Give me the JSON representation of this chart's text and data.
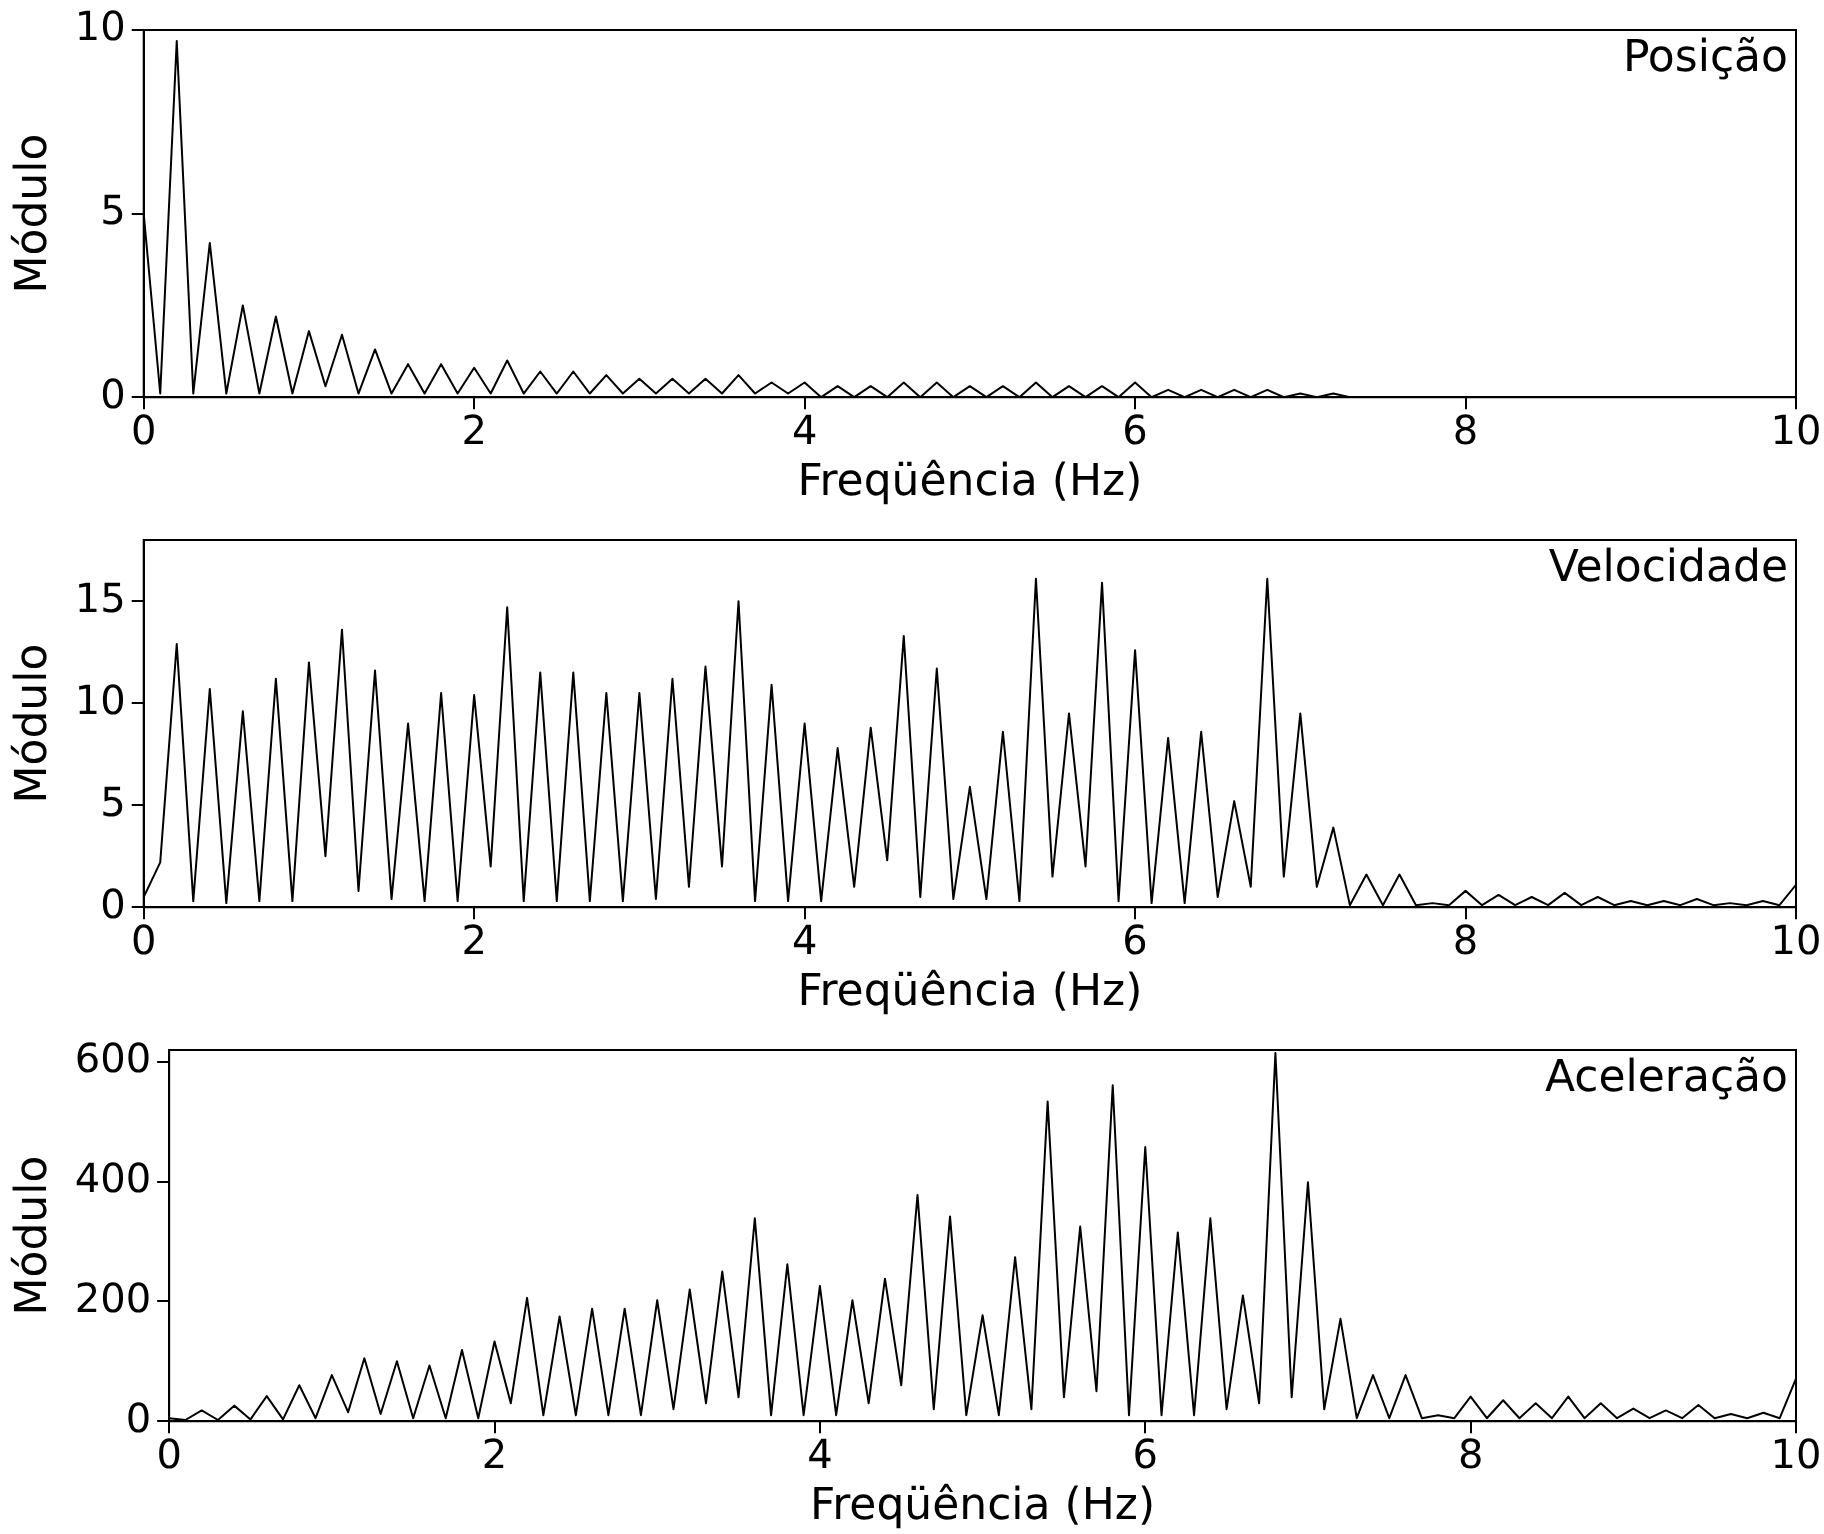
{
  "chart_data": [
    {
      "type": "line",
      "title": "Posição",
      "xlabel": "Freqüência (Hz)",
      "ylabel": "Módulo",
      "color": "#000000",
      "xlim": [
        0,
        10
      ],
      "xticks": [
        0,
        2,
        4,
        6,
        8,
        10
      ],
      "ylim": [
        0,
        10
      ],
      "yticks": [
        0,
        5,
        10
      ],
      "x": [
        0,
        0.1,
        0.2,
        0.3,
        0.4,
        0.5,
        0.6,
        0.7,
        0.8,
        0.9,
        1,
        1.1,
        1.2,
        1.3,
        1.4,
        1.5,
        1.6,
        1.7,
        1.8,
        1.9,
        2,
        2.1,
        2.2,
        2.3,
        2.4,
        2.5,
        2.6,
        2.7,
        2.8,
        2.9,
        3,
        3.1,
        3.2,
        3.3,
        3.4,
        3.5,
        3.6,
        3.7,
        3.8,
        3.9,
        4,
        4.1,
        4.2,
        4.3,
        4.4,
        4.5,
        4.6,
        4.7,
        4.8,
        4.9,
        5,
        5.1,
        5.2,
        5.3,
        5.4,
        5.5,
        5.6,
        5.7,
        5.8,
        5.9,
        6,
        6.1,
        6.2,
        6.3,
        6.4,
        6.5,
        6.6,
        6.7,
        6.8,
        6.9,
        7,
        7.1,
        7.2,
        7.3,
        7.4,
        7.5,
        7.6,
        7.7,
        7.8,
        7.9,
        8,
        8.1,
        8.2,
        8.3,
        8.4,
        8.5,
        8.6,
        8.7,
        8.8,
        8.9,
        9,
        9.1,
        9.2,
        9.3,
        9.4,
        9.5,
        9.6,
        9.7,
        9.8,
        9.9,
        10
      ],
      "values": [
        5,
        0.1,
        9.7,
        0.1,
        4.2,
        0.1,
        2.5,
        0.1,
        2.2,
        0.1,
        1.8,
        0.3,
        1.7,
        0.1,
        1.3,
        0.1,
        0.9,
        0.1,
        0.9,
        0.1,
        0.8,
        0.1,
        1.0,
        0.1,
        0.7,
        0.1,
        0.7,
        0.1,
        0.6,
        0.1,
        0.5,
        0.1,
        0.5,
        0.1,
        0.5,
        0.1,
        0.6,
        0.1,
        0.4,
        0.1,
        0.4,
        0,
        0.3,
        0,
        0.3,
        0,
        0.4,
        0,
        0.4,
        0,
        0.3,
        0,
        0.3,
        0,
        0.4,
        0,
        0.3,
        0,
        0.3,
        0,
        0.4,
        0,
        0.2,
        0,
        0.2,
        0,
        0.2,
        0,
        0.2,
        0,
        0.1,
        0,
        0.1,
        0,
        0,
        0,
        0,
        0,
        0,
        0,
        0,
        0,
        0,
        0,
        0,
        0,
        0,
        0,
        0,
        0,
        0,
        0,
        0,
        0,
        0,
        0,
        0,
        0,
        0,
        0,
        0
      ]
    },
    {
      "type": "line",
      "title": "Velocidade",
      "xlabel": "Freqüência (Hz)",
      "ylabel": "Módulo",
      "color": "#000000",
      "xlim": [
        0,
        10
      ],
      "xticks": [
        0,
        2,
        4,
        6,
        8,
        10
      ],
      "ylim": [
        0,
        18
      ],
      "yticks": [
        0,
        5,
        10,
        15
      ],
      "x": [
        0,
        0.1,
        0.2,
        0.3,
        0.4,
        0.5,
        0.6,
        0.7,
        0.8,
        0.9,
        1,
        1.1,
        1.2,
        1.3,
        1.4,
        1.5,
        1.6,
        1.7,
        1.8,
        1.9,
        2,
        2.1,
        2.2,
        2.3,
        2.4,
        2.5,
        2.6,
        2.7,
        2.8,
        2.9,
        3,
        3.1,
        3.2,
        3.3,
        3.4,
        3.5,
        3.6,
        3.7,
        3.8,
        3.9,
        4,
        4.1,
        4.2,
        4.3,
        4.4,
        4.5,
        4.6,
        4.7,
        4.8,
        4.9,
        5,
        5.1,
        5.2,
        5.3,
        5.4,
        5.5,
        5.6,
        5.7,
        5.8,
        5.9,
        6,
        6.1,
        6.2,
        6.3,
        6.4,
        6.5,
        6.6,
        6.7,
        6.8,
        6.9,
        7,
        7.1,
        7.2,
        7.3,
        7.4,
        7.5,
        7.6,
        7.7,
        7.8,
        7.9,
        8,
        8.1,
        8.2,
        8.3,
        8.4,
        8.5,
        8.6,
        8.7,
        8.8,
        8.9,
        9,
        9.1,
        9.2,
        9.3,
        9.4,
        9.5,
        9.6,
        9.7,
        9.8,
        9.9,
        10
      ],
      "values": [
        0.5,
        2.2,
        12.9,
        0.3,
        10.7,
        0.2,
        9.6,
        0.3,
        11.2,
        0.3,
        12.0,
        2.5,
        13.6,
        0.8,
        11.6,
        0.4,
        9.0,
        0.3,
        10.5,
        0.3,
        10.4,
        2.0,
        14.7,
        0.3,
        11.5,
        0.3,
        11.5,
        0.3,
        10.5,
        0.3,
        10.5,
        0.4,
        11.2,
        1.0,
        11.8,
        2.0,
        15.0,
        0.3,
        10.9,
        0.3,
        9.0,
        0.3,
        7.8,
        1.0,
        8.8,
        2.3,
        13.3,
        0.5,
        11.7,
        0.4,
        5.9,
        0.4,
        8.6,
        0.3,
        16.1,
        1.5,
        9.5,
        2.0,
        15.9,
        0.3,
        12.6,
        0.2,
        8.3,
        0.2,
        8.6,
        0.5,
        5.2,
        1.0,
        16.1,
        1.5,
        9.5,
        1.0,
        3.9,
        0.1,
        1.6,
        0.1,
        1.6,
        0.1,
        0.2,
        0.1,
        0.8,
        0.1,
        0.6,
        0.1,
        0.5,
        0.1,
        0.7,
        0.1,
        0.5,
        0.1,
        0.3,
        0.1,
        0.3,
        0.1,
        0.4,
        0.1,
        0.2,
        0.1,
        0.3,
        0.1,
        1.1
      ]
    },
    {
      "type": "line",
      "title": "Aceleração",
      "xlabel": "Freqüência (Hz)",
      "ylabel": "Módulo",
      "color": "#000000",
      "xlim": [
        0,
        10
      ],
      "xticks": [
        0,
        2,
        4,
        6,
        8,
        10
      ],
      "ylim": [
        0,
        620
      ],
      "yticks": [
        0,
        200,
        400,
        600
      ],
      "x": [
        0,
        0.1,
        0.2,
        0.3,
        0.4,
        0.5,
        0.6,
        0.7,
        0.8,
        0.9,
        1,
        1.1,
        1.2,
        1.3,
        1.4,
        1.5,
        1.6,
        1.7,
        1.8,
        1.9,
        2,
        2.1,
        2.2,
        2.3,
        2.4,
        2.5,
        2.6,
        2.7,
        2.8,
        2.9,
        3,
        3.1,
        3.2,
        3.3,
        3.4,
        3.5,
        3.6,
        3.7,
        3.8,
        3.9,
        4,
        4.1,
        4.2,
        4.3,
        4.4,
        4.5,
        4.6,
        4.7,
        4.8,
        4.9,
        5,
        5.1,
        5.2,
        5.3,
        5.4,
        5.5,
        5.6,
        5.7,
        5.8,
        5.9,
        6,
        6.1,
        6.2,
        6.3,
        6.4,
        6.5,
        6.6,
        6.7,
        6.8,
        6.9,
        7,
        7.1,
        7.2,
        7.3,
        7.4,
        7.5,
        7.6,
        7.7,
        7.8,
        7.9,
        8,
        8.1,
        8.2,
        8.3,
        8.4,
        8.5,
        8.6,
        8.7,
        8.8,
        8.9,
        9,
        9.1,
        9.2,
        9.3,
        9.4,
        9.5,
        9.6,
        9.7,
        9.8,
        9.9,
        10
      ],
      "values": [
        5,
        2,
        18,
        2,
        26,
        3,
        42,
        3,
        60,
        5,
        77,
        15,
        105,
        12,
        100,
        5,
        93,
        5,
        119,
        5,
        133,
        30,
        206,
        10,
        175,
        10,
        188,
        10,
        188,
        10,
        202,
        20,
        220,
        30,
        250,
        40,
        339,
        10,
        262,
        10,
        226,
        10,
        202,
        30,
        238,
        60,
        378,
        20,
        342,
        10,
        177,
        10,
        274,
        20,
        534,
        40,
        325,
        50,
        561,
        10,
        458,
        10,
        315,
        10,
        339,
        20,
        210,
        30,
        615,
        40,
        399,
        20,
        171,
        5,
        77,
        5,
        77,
        5,
        10,
        5,
        41,
        5,
        35,
        5,
        30,
        5,
        41,
        5,
        30,
        5,
        21,
        5,
        18,
        5,
        27,
        5,
        12,
        5,
        14,
        5,
        71
      ]
    }
  ]
}
